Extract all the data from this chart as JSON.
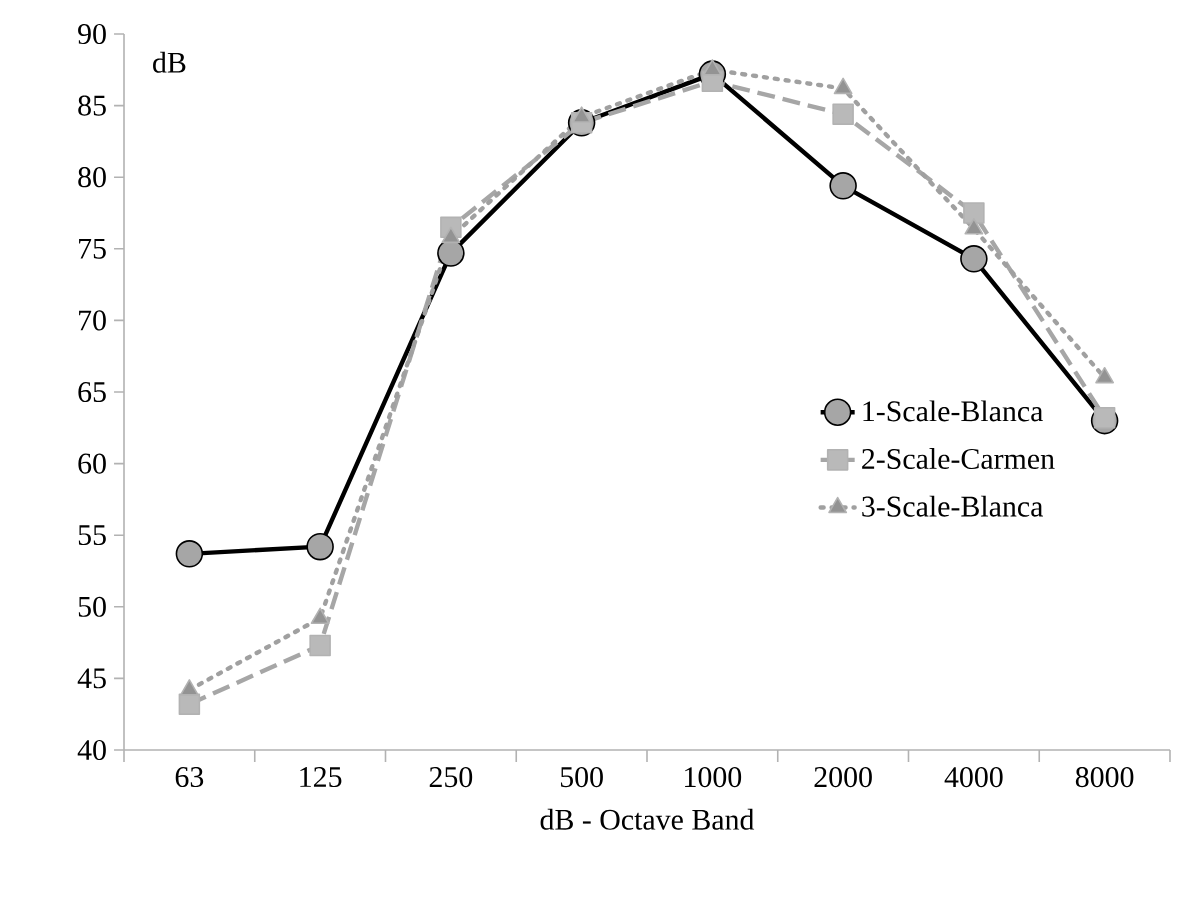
{
  "chart_data": {
    "type": "line",
    "ylabel": "dB",
    "xlabel": "dB  - Octave Band",
    "categories": [
      "63",
      "125",
      "250",
      "500",
      "1000",
      "2000",
      "4000",
      "8000"
    ],
    "ylim": [
      40,
      90
    ],
    "yticks": [
      40,
      45,
      50,
      55,
      60,
      65,
      70,
      75,
      80,
      85,
      90
    ],
    "legend": "right",
    "grid": false,
    "series": [
      {
        "name": "1-Scale-Blanca",
        "color": "#000000",
        "marker": "circle",
        "line_style": "solid",
        "values": [
          53.7,
          54.2,
          74.7,
          83.8,
          87.2,
          79.4,
          74.3,
          63.0
        ]
      },
      {
        "name": "2-Scale-Carmen",
        "color": "#a6a6a6",
        "marker": "square",
        "line_style": "dashed",
        "values": [
          43.2,
          47.3,
          76.5,
          83.8,
          86.7,
          84.4,
          77.5,
          63.2
        ]
      },
      {
        "name": "3-Scale-Blanca",
        "color": "#a0a0a0",
        "marker": "triangle",
        "line_style": "dotted",
        "values": [
          44.2,
          49.2,
          75.8,
          84.2,
          87.5,
          86.2,
          76.4,
          66.0
        ]
      }
    ]
  }
}
